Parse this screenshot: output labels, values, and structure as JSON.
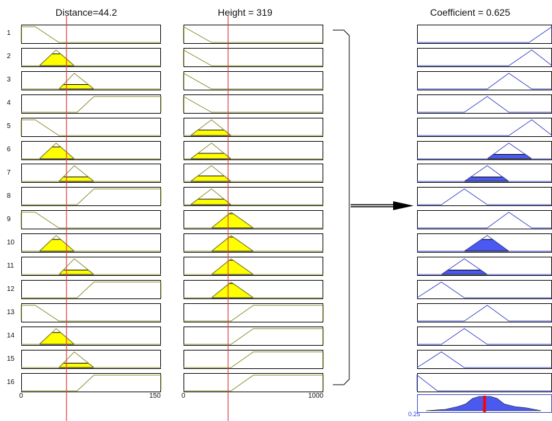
{
  "titles": {
    "input1": "Distance=44.2",
    "input2": "Height = 319",
    "output": "Coefficient = 0.625"
  },
  "rule_numbers": [
    "1",
    "2",
    "3",
    "4",
    "5",
    "6",
    "7",
    "8",
    "9",
    "10",
    "11",
    "12",
    "13",
    "14",
    "15",
    "16"
  ],
  "axes": {
    "input1": {
      "min_label": "0",
      "max_label": "150",
      "min": 0,
      "max": 150,
      "value": 44.2
    },
    "input2": {
      "min_label": "0",
      "max_label": "1000",
      "min": 0,
      "max": 1000,
      "value": 319
    },
    "output": {
      "min_label": "0.25",
      "min": 0.25,
      "value": 0.625
    }
  },
  "colors": {
    "input_fill": "#ffff00",
    "input_line": "#8a8a2a",
    "output_fill": "#4a5af0",
    "output_line": "#3b46c8",
    "crosshair": "#e04040",
    "defuzz_marker": "#ff0000",
    "frame": "#000000"
  }
}
